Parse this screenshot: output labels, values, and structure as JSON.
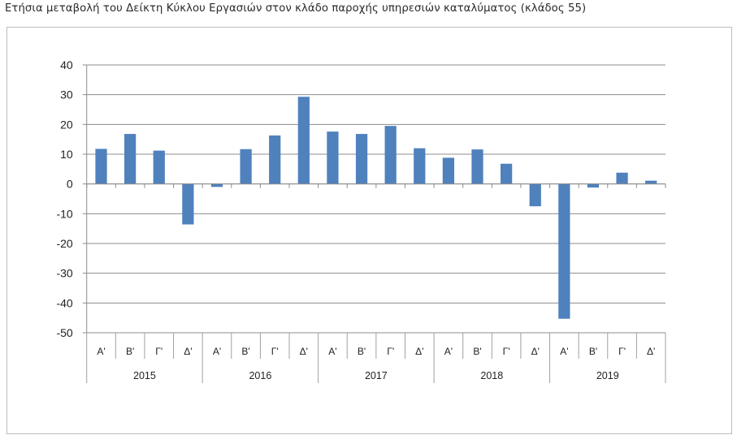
{
  "chart_data": {
    "type": "bar",
    "title": "Ετήσια μεταβολή του Δείκτη Κύκλου Εργασιών στον κλάδο παροχής υπηρεσιών καταλύματος (κλάδος 55)",
    "xlabel": "",
    "ylabel": "",
    "ylim": [
      -50,
      40
    ],
    "yticks": [
      40,
      30,
      20,
      10,
      0,
      -10,
      -20,
      -30,
      -40,
      -50
    ],
    "grid": true,
    "years": [
      "2015",
      "2016",
      "2017",
      "2018",
      "2019"
    ],
    "quarters": [
      "Α'",
      "Β'",
      "Γ'",
      "Δ'"
    ],
    "categories": [
      "2015 Α'",
      "2015 Β'",
      "2015 Γ'",
      "2015 Δ'",
      "2016 Α'",
      "2016 Β'",
      "2016 Γ'",
      "2016 Δ'",
      "2017 Α'",
      "2017 Β'",
      "2017 Γ'",
      "2017 Δ'",
      "2018 Α'",
      "2018 Β'",
      "2018 Γ'",
      "2018 Δ'",
      "2019 Α'",
      "2019 Β'",
      "2019 Γ'",
      "2019 Δ'"
    ],
    "values": [
      11.8,
      16.8,
      11.2,
      -13.6,
      -1.0,
      11.7,
      16.3,
      29.3,
      17.6,
      16.8,
      19.5,
      12.0,
      8.8,
      11.6,
      6.8,
      -7.5,
      -45.3,
      -1.2,
      3.8,
      1.1
    ],
    "bar_color": "#4f81bd",
    "grid_color": "#8c8c8c"
  }
}
